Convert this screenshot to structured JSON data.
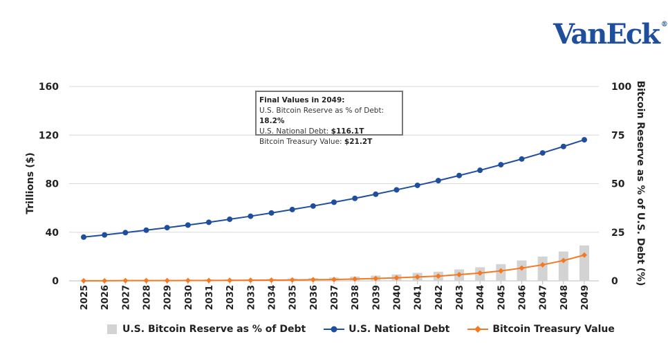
{
  "logo": "VanEck",
  "tooltip": {
    "title": "Final Values in 2049:",
    "reserve_label": "U.S. Bitcoin Reserve as % of Debt: ",
    "reserve_value": "18.2%",
    "debt_label": "U.S. National Debt: ",
    "debt_value": "$116.1T",
    "btc_label": "Bitcoin Treasury Value: ",
    "btc_value": "$21.2T"
  },
  "chart_data": {
    "type": "bar+line",
    "categories": [
      "2025",
      "2026",
      "2027",
      "2028",
      "2029",
      "2030",
      "2031",
      "2032",
      "2033",
      "2034",
      "2035",
      "2036",
      "2037",
      "2038",
      "2039",
      "2040",
      "2041",
      "2042",
      "2043",
      "2044",
      "2045",
      "2046",
      "2047",
      "2048",
      "2049"
    ],
    "ylabel_left": "Trillions ($)",
    "ylabel_right": "Bitcoin Reserve as % of U.S. Debt (%)",
    "ylim_left": [
      0,
      160
    ],
    "yticks_left": [
      0,
      40,
      80,
      120,
      160
    ],
    "ylim_right": [
      0,
      100
    ],
    "yticks_right": [
      0,
      25,
      50,
      75,
      100
    ],
    "grid": true,
    "legend_position": "bottom",
    "series": [
      {
        "name": "U.S. Bitcoin Reserve as % of Debt",
        "type": "bar",
        "axis": "right",
        "color": "#d3d3d3",
        "values": [
          0.3,
          0.3,
          0.4,
          0.4,
          0.5,
          0.6,
          0.7,
          0.7,
          0.8,
          1.0,
          1.2,
          1.4,
          1.7,
          2.2,
          2.7,
          3.3,
          4.1,
          4.7,
          5.9,
          7.0,
          8.6,
          10.5,
          12.5,
          15.1,
          18.2
        ]
      },
      {
        "name": "U.S. National Debt",
        "type": "line",
        "axis": "left",
        "color": "#1f4e9c",
        "marker": "circle",
        "values": [
          36.0,
          37.8,
          39.7,
          41.7,
          43.8,
          45.9,
          48.2,
          50.7,
          53.2,
          55.9,
          58.7,
          61.6,
          64.7,
          67.9,
          71.3,
          74.9,
          78.6,
          82.5,
          86.7,
          91.0,
          95.6,
          100.3,
          105.3,
          110.6,
          116.1
        ]
      },
      {
        "name": "Bitcoin Treasury Value",
        "type": "line",
        "axis": "left",
        "color": "#f47920",
        "marker": "diamond",
        "values": [
          0.1,
          0.1,
          0.2,
          0.2,
          0.2,
          0.3,
          0.3,
          0.4,
          0.5,
          0.6,
          0.7,
          0.9,
          1.1,
          1.5,
          1.9,
          2.5,
          3.2,
          3.9,
          5.1,
          6.4,
          8.2,
          10.5,
          13.2,
          16.7,
          21.2
        ]
      }
    ]
  }
}
